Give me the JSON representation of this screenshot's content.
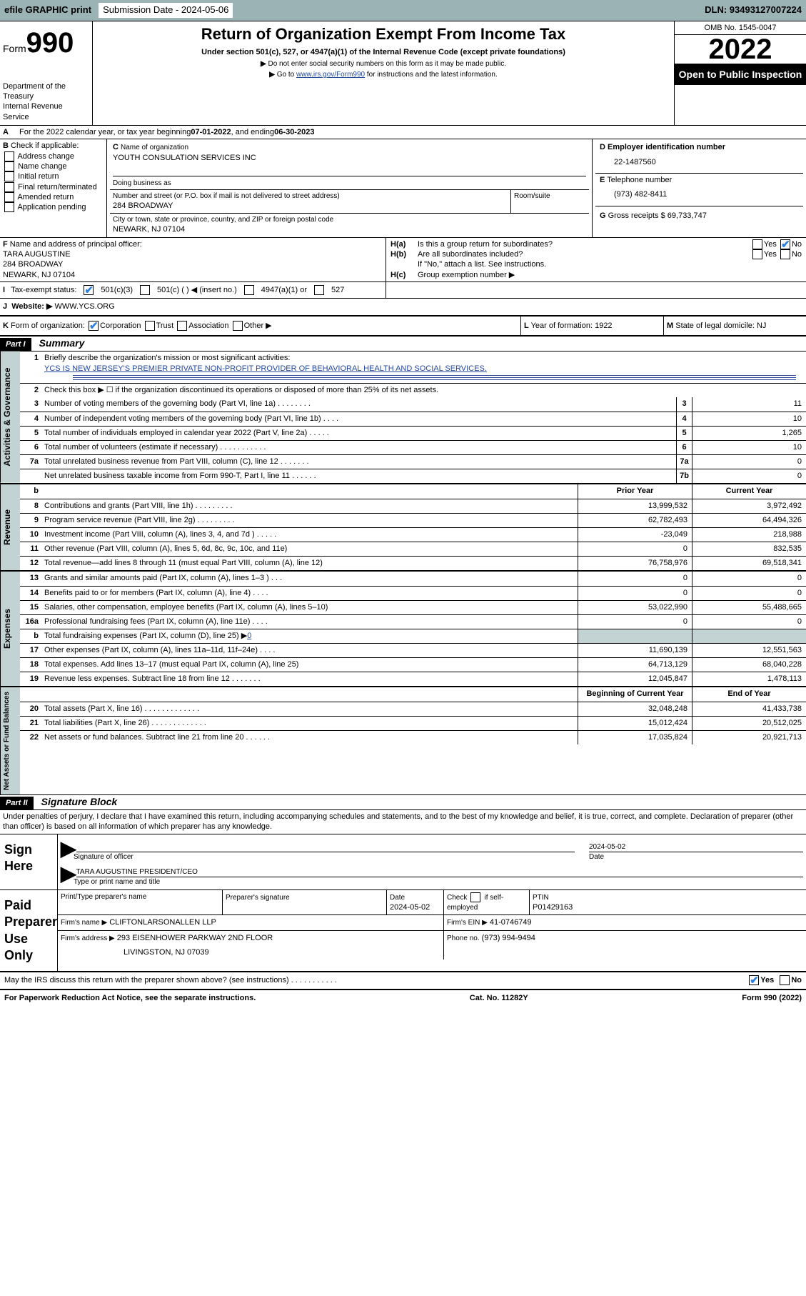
{
  "topbar": {
    "print": "efile GRAPHIC print",
    "sub_label": "Submission Date - 2024-05-06",
    "dln": "DLN: 93493127007224"
  },
  "header": {
    "form_word": "Form",
    "form_num": "990",
    "dept": "Department of the Treasury",
    "irs": "Internal Revenue Service",
    "title": "Return of Organization Exempt From Income Tax",
    "subtitle": "Under section 501(c), 527, or 4947(a)(1) of the Internal Revenue Code (except private foundations)",
    "note1": "Do not enter social security numbers on this form as it may be made public.",
    "note2_pre": "Go to ",
    "note2_link": "www.irs.gov/Form990",
    "note2_post": " for instructions and the latest information.",
    "omb": "OMB No. 1545-0047",
    "year": "2022",
    "open": "Open to Public Inspection"
  },
  "row_a": {
    "label_a": "A",
    "text": "For the 2022 calendar year, or tax year beginning ",
    "begin": "07-01-2022",
    "middle": ", and ending ",
    "end": "06-30-2023"
  },
  "block_b": {
    "label": "B",
    "intro": "Check if applicable:",
    "items": [
      "Address change",
      "Name change",
      "Initial return",
      "Final return/terminated",
      "Amended return",
      "Application pending"
    ],
    "checked_index": -1
  },
  "block_c": {
    "label": "C",
    "name_lbl": "Name of organization",
    "name": "YOUTH CONSULATION SERVICES INC",
    "dba_lbl": "Doing business as",
    "addr_lbl": "Number and street (or P.O. box if mail is not delivered to street address)",
    "room_lbl": "Room/suite",
    "addr": "284 BROADWAY",
    "city_lbl": "City or town, state or province, country, and ZIP or foreign postal code",
    "city": "NEWARK, NJ  07104"
  },
  "block_d": {
    "label": "D",
    "lbl": "Employer identification number",
    "val": "22-1487560"
  },
  "block_e": {
    "label": "E",
    "lbl": "Telephone number",
    "val": "(973) 482-8411"
  },
  "block_g": {
    "label": "G",
    "lbl": "Gross receipts $",
    "val": "69,733,747"
  },
  "block_f": {
    "label": "F",
    "lbl": "Name and address of principal officer:",
    "name": "TARA AUGUSTINE",
    "addr": "284 BROADWAY",
    "city": "NEWARK, NJ  07104"
  },
  "block_h": {
    "a_lbl": "H(a)",
    "a_txt": "Is this a group return for subordinates?",
    "b_lbl": "H(b)",
    "b_txt": "Are all subordinates included?",
    "note": "If \"No,\" attach a list. See instructions.",
    "c_lbl": "H(c)",
    "c_txt": "Group exemption number ▶",
    "yes": "Yes",
    "no": "No"
  },
  "row_i": {
    "label": "I",
    "lbl": "Tax-exempt status:",
    "opt1": "501(c)(3)",
    "opt2": "501(c) (   ) ◀ (insert no.)",
    "opt3": "4947(a)(1) or",
    "opt4": "527"
  },
  "row_j": {
    "label": "J",
    "lbl": "Website: ▶",
    "val": "WWW.YCS.ORG"
  },
  "row_k": {
    "label": "K",
    "lbl": "Form of organization:",
    "opt1": "Corporation",
    "opt2": "Trust",
    "opt3": "Association",
    "opt4": "Other ▶"
  },
  "row_l": {
    "label": "L",
    "lbl": "Year of formation:",
    "val": "1922"
  },
  "row_m": {
    "label": "M",
    "lbl": "State of legal domicile:",
    "val": "NJ"
  },
  "part1": {
    "tag": "Part I",
    "title": "Summary",
    "q1": "Briefly describe the organization's mission or most significant activities:",
    "q1_ans": "YCS IS NEW JERSEY'S PREMIER PRIVATE NON-PROFIT PROVIDER OF BEHAVIORAL HEALTH AND SOCIAL SERVICES.",
    "q2": "Check this box ▶ ☐  if the organization discontinued its operations or disposed of more than 25% of its net assets.",
    "hdr_prior": "Prior Year",
    "hdr_current": "Current Year",
    "hdr_begin": "Beginning of Current Year",
    "hdr_end": "End of Year"
  },
  "sidelabels": {
    "s1": "Activities & Governance",
    "s2": "Revenue",
    "s3": "Expenses",
    "s4": "Net Assets or Fund Balances"
  },
  "lines": {
    "l3": {
      "t": "Number of voting members of the governing body (Part VI, line 1a)  .    .    .    .    .    .    .    .",
      "n": "3",
      "v": "11"
    },
    "l4": {
      "t": "Number of independent voting members of the governing body (Part VI, line 1b)   .    .    .    .",
      "n": "4",
      "v": "10"
    },
    "l5": {
      "t": "Total number of individuals employed in calendar year 2022 (Part V, line 2a)   .    .    .    .    .",
      "n": "5",
      "v": "1,265"
    },
    "l6": {
      "t": "Total number of volunteers (estimate if necessary)   .    .    .    .    .    .    .    .    .    .    .",
      "n": "6",
      "v": "10"
    },
    "l7a": {
      "t": "Total unrelated business revenue from Part VIII, column (C), line 12   .    .    .    .    .    .    .",
      "n": "7a",
      "v": "0"
    },
    "l7b": {
      "t": "Net unrelated business taxable income from Form 990-T, Part I, line 11    .    .    .    .    .    .",
      "n": "7b",
      "v": "0"
    },
    "l8": {
      "t": "Contributions and grants (Part VIII, line 1h)    .    .    .    .    .    .    .    .    .",
      "p": "13,999,532",
      "c": "3,972,492"
    },
    "l9": {
      "t": "Program service revenue (Part VIII, line 2g)    .    .    .    .    .    .    .    .    .",
      "p": "62,782,493",
      "c": "64,494,326"
    },
    "l10": {
      "t": "Investment income (Part VIII, column (A), lines 3, 4, and 7d )    .    .    .    .    .",
      "p": "-23,049",
      "c": "218,988"
    },
    "l11": {
      "t": "Other revenue (Part VIII, column (A), lines 5, 6d, 8c, 9c, 10c, and 11e)",
      "p": "0",
      "c": "832,535"
    },
    "l12": {
      "t": "Total revenue—add lines 8 through 11 (must equal Part VIII, column (A), line 12)",
      "p": "76,758,976",
      "c": "69,518,341"
    },
    "l13": {
      "t": "Grants and similar amounts paid (Part IX, column (A), lines 1–3 )    .    .    .",
      "p": "0",
      "c": "0"
    },
    "l14": {
      "t": "Benefits paid to or for members (Part IX, column (A), line 4)    .    .    .    .",
      "p": "0",
      "c": "0"
    },
    "l15": {
      "t": "Salaries, other compensation, employee benefits (Part IX, column (A), lines 5–10)",
      "p": "53,022,990",
      "c": "55,488,665"
    },
    "l16a": {
      "t": "Professional fundraising fees (Part IX, column (A), line 11e)    .    .    .    .",
      "p": "0",
      "c": "0"
    },
    "l16b": {
      "t": "Total fundraising expenses (Part IX, column (D), line 25) ▶",
      "v": "0"
    },
    "l17": {
      "t": "Other expenses (Part IX, column (A), lines 11a–11d, 11f–24e)    .    .    .    .",
      "p": "11,690,139",
      "c": "12,551,563"
    },
    "l18": {
      "t": "Total expenses. Add lines 13–17 (must equal Part IX, column (A), line 25)",
      "p": "64,713,129",
      "c": "68,040,228"
    },
    "l19": {
      "t": "Revenue less expenses. Subtract line 18 from line 12    .    .    .    .    .    .    .",
      "p": "12,045,847",
      "c": "1,478,113"
    },
    "l20": {
      "t": "Total assets (Part X, line 16)    .    .    .    .    .    .    .    .    .    .    .    .    .",
      "p": "32,048,248",
      "c": "41,433,738"
    },
    "l21": {
      "t": "Total liabilities (Part X, line 26)    .    .    .    .    .    .    .    .    .    .    .    .    .",
      "p": "15,012,424",
      "c": "20,512,025"
    },
    "l22": {
      "t": "Net assets or fund balances. Subtract line 21 from line 20  .    .    .    .    .    .",
      "p": "17,035,824",
      "c": "20,921,713"
    }
  },
  "part2": {
    "tag": "Part II",
    "title": "Signature Block",
    "decl": "Under penalties of perjury, I declare that I have examined this return, including accompanying schedules and statements, and to the best of my knowledge and belief, it is true, correct, and complete. Declaration of preparer (other than officer) is based on all information of which preparer has any knowledge."
  },
  "sign": {
    "here": "Sign Here",
    "sig_lbl": "Signature of officer",
    "date_lbl": "Date",
    "date": "2024-05-02",
    "name": "TARA AUGUSTINE  PRESIDENT/CEO",
    "name_lbl": "Type or print name and title"
  },
  "paid": {
    "here": "Paid Preparer Use Only",
    "h1": "Print/Type preparer's name",
    "h2": "Preparer's signature",
    "h3": "Date",
    "date": "2024-05-02",
    "h4_pre": "Check",
    "h4_post": "if self-employed",
    "h5": "PTIN",
    "ptin": "P01429163",
    "firm_name_lbl": "Firm's name    ▶",
    "firm_name": "CLIFTONLARSONALLEN LLP",
    "firm_ein_lbl": "Firm's EIN ▶",
    "firm_ein": "41-0746749",
    "firm_addr_lbl": "Firm's address ▶",
    "firm_addr1": "293 EISENHOWER PARKWAY 2ND FLOOR",
    "firm_addr2": "LIVINGSTON, NJ  07039",
    "phone_lbl": "Phone no.",
    "phone": "(973) 994-9494",
    "discuss": "May the IRS discuss this return with the preparer shown above? (see instructions)   .    .    .    .    .    .    .    .    .    .    ."
  },
  "footer": {
    "left": "For Paperwork Reduction Act Notice, see the separate instructions.",
    "mid": "Cat. No. 11282Y",
    "right": "Form 990 (2022)"
  },
  "colors": {
    "shade": "#c3d3d4",
    "link": "#23489e",
    "check": "#2a7de1"
  }
}
